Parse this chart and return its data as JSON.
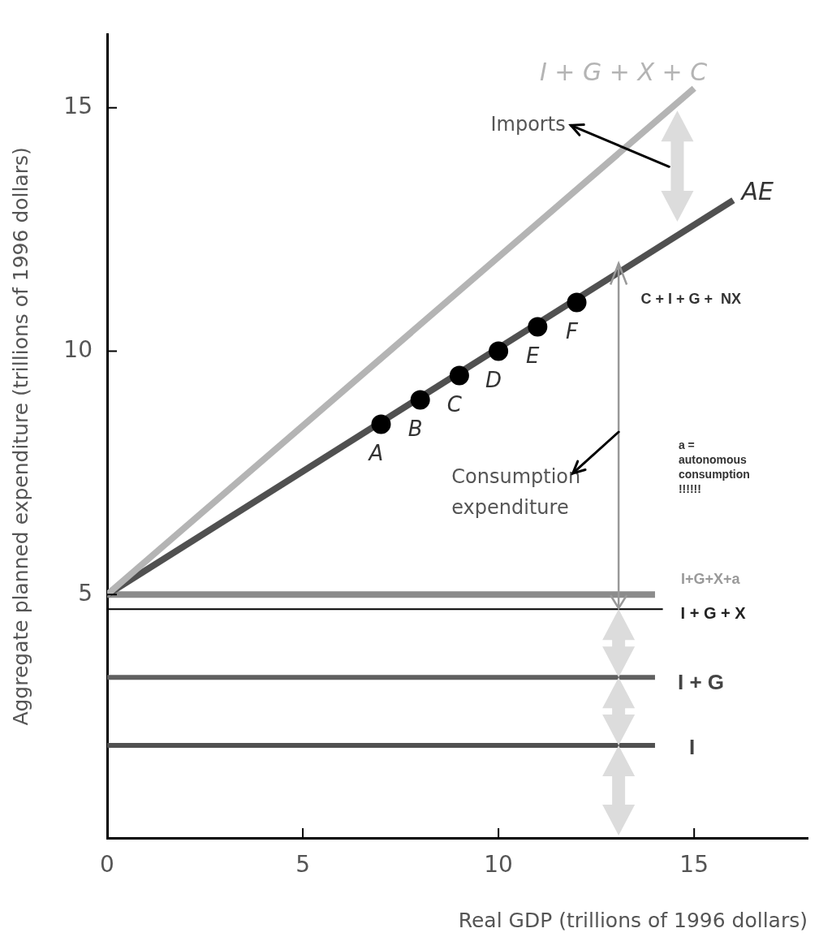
{
  "chart_data": {
    "type": "line",
    "xlabel": "Real GDP (trillions of 1996 dollars)",
    "ylabel": "Aggregate planned expenditure (trillions of 1996 dollars)",
    "xlim": [
      0,
      17.9
    ],
    "ylim": [
      0,
      16.5
    ],
    "xticks": [
      0,
      5,
      10,
      15
    ],
    "yticks": [
      5,
      10,
      15
    ],
    "grid": false,
    "legend": false,
    "marker": "none",
    "line_style": "solid",
    "series": [
      {
        "name": "I + G + X + C",
        "color": "#b4b4b4",
        "x": [
          0,
          15
        ],
        "values": [
          5.0,
          15.4
        ]
      },
      {
        "name": "AE",
        "color": "#505050",
        "x": [
          0,
          16
        ],
        "values": [
          5.0,
          13.1
        ]
      },
      {
        "name": "I+G+X+a",
        "color": "#8c8c8c",
        "x": [
          0,
          14
        ],
        "values": [
          5.0,
          5.0
        ]
      },
      {
        "name": "I + G + X",
        "color": "#000000",
        "x": [
          0,
          14.2
        ],
        "values": [
          4.7,
          4.7
        ]
      },
      {
        "name": "I + G",
        "color": "#606060",
        "x": [
          0,
          14
        ],
        "values": [
          3.3,
          3.3
        ]
      },
      {
        "name": "I",
        "color": "#505050",
        "x": [
          0,
          14
        ],
        "values": [
          1.9,
          1.9
        ]
      },
      {
        "type": "scatter",
        "color": "#000000",
        "marker": "circle",
        "x": [
          7,
          8,
          9,
          10,
          11,
          12
        ],
        "values": [
          8.5,
          9.0,
          9.5,
          10.0,
          10.5,
          11.0
        ],
        "value_labels": [
          "A",
          "B",
          "C",
          "D",
          "E",
          "F"
        ]
      }
    ],
    "annotations": [
      "Imports",
      "Consumption expenditure",
      {
        "text": "C + I + G +  NX",
        "x": 13.1,
        "y": 11.6
      },
      "a = autonomous consumption !!!!!!"
    ]
  }
}
